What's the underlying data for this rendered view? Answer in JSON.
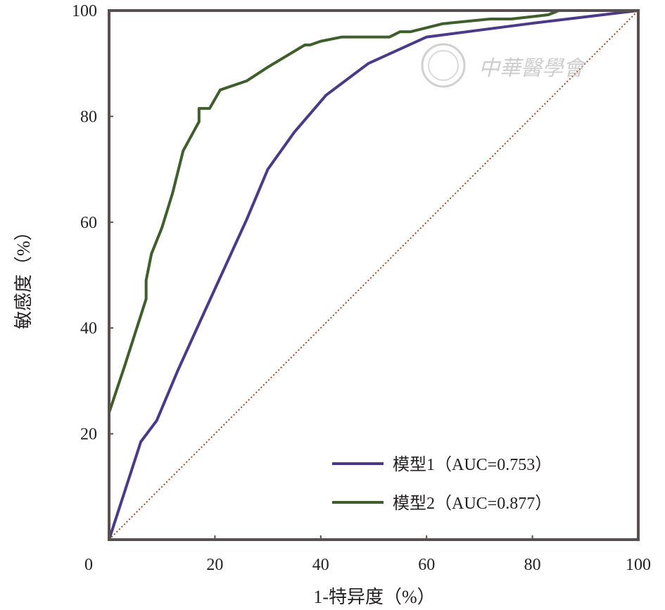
{
  "chart_data": {
    "type": "line",
    "xlabel": "1-特异度（%）",
    "ylabel": "敏感度（%）",
    "xlim": [
      0,
      100
    ],
    "ylim": [
      0,
      100
    ],
    "x_ticks": [
      "0",
      "20",
      "40",
      "60",
      "80",
      "100"
    ],
    "y_ticks": [
      "20",
      "40",
      "60",
      "80",
      "100"
    ],
    "grid": false,
    "legend_position": "bottom-right",
    "reference_line": {
      "style": "dotted",
      "color": "#9a4a2f",
      "points": [
        [
          0,
          0
        ],
        [
          100,
          100
        ]
      ]
    },
    "series": [
      {
        "name": "模型1（AUC=0.753）",
        "color": "#4b3a87",
        "points": [
          [
            0,
            0
          ],
          [
            6,
            18.5
          ],
          [
            9,
            22.5
          ],
          [
            13,
            32
          ],
          [
            18,
            43
          ],
          [
            26,
            60.5
          ],
          [
            30,
            70
          ],
          [
            35,
            77
          ],
          [
            41,
            84
          ],
          [
            49,
            90
          ],
          [
            60,
            95
          ],
          [
            70,
            96.3
          ],
          [
            80,
            97.6
          ],
          [
            90,
            98.8
          ],
          [
            100,
            100
          ]
        ]
      },
      {
        "name": "模型2（AUC=0.877）",
        "color": "#3f5e2b",
        "points": [
          [
            0,
            0
          ],
          [
            0,
            8.5
          ],
          [
            0,
            24
          ],
          [
            3,
            33
          ],
          [
            7,
            45.5
          ],
          [
            7,
            49
          ],
          [
            8,
            54
          ],
          [
            10,
            59
          ],
          [
            12,
            65.5
          ],
          [
            14,
            73.5
          ],
          [
            17,
            79
          ],
          [
            17,
            81.5
          ],
          [
            19,
            81.5
          ],
          [
            21,
            85
          ],
          [
            26,
            86.7
          ],
          [
            30,
            89.3
          ],
          [
            37,
            93.5
          ],
          [
            38,
            93.5
          ],
          [
            40,
            94.2
          ],
          [
            44,
            95
          ],
          [
            53,
            95
          ],
          [
            55,
            96
          ],
          [
            57,
            96
          ],
          [
            63,
            97.5
          ],
          [
            72,
            98.4
          ],
          [
            76,
            98.4
          ],
          [
            83,
            99.2
          ],
          [
            85,
            100
          ],
          [
            100,
            100
          ]
        ]
      }
    ]
  },
  "watermark": {
    "text": "中華醫學會"
  }
}
